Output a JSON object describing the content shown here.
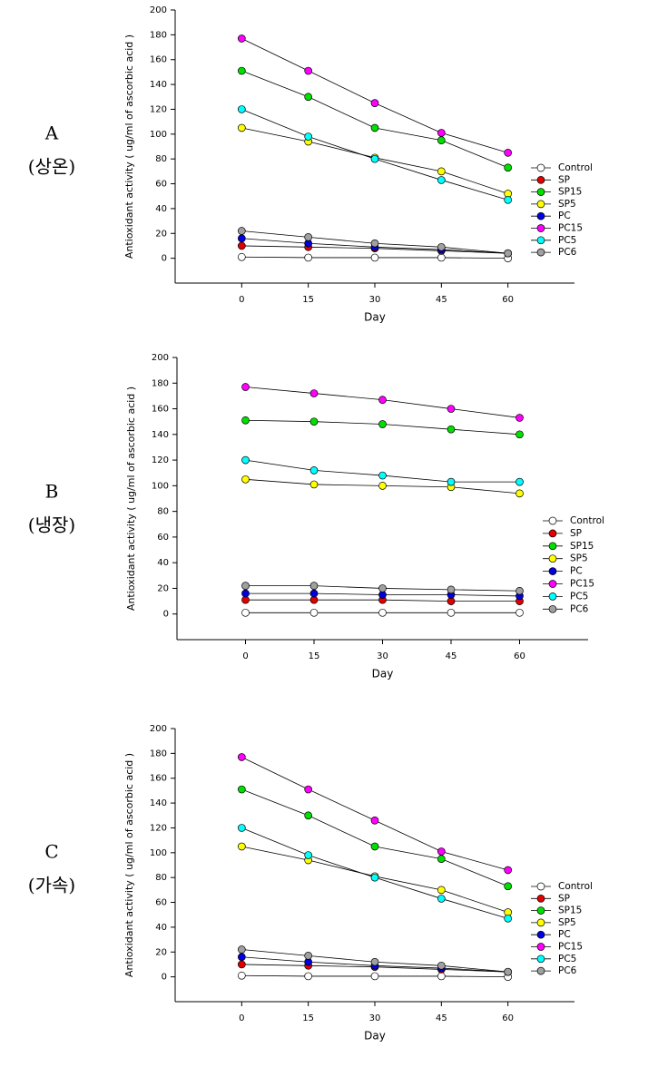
{
  "chart_data": [
    {
      "type": "line",
      "panel": "A",
      "condition": "(상온)",
      "xlabel": "Day",
      "ylabel": "Antioxidant activity ( ug/ml of ascorbic acid )",
      "x": [
        0,
        15,
        30,
        45,
        60
      ],
      "xlim": [
        -15,
        75
      ],
      "xticks": [
        0,
        15,
        30,
        45,
        60
      ],
      "ylim": [
        -20,
        200
      ],
      "yticks": [
        0,
        20,
        40,
        60,
        80,
        100,
        120,
        140,
        160,
        180,
        200
      ],
      "series": [
        {
          "name": "Control",
          "color": "#ffffff",
          "values": [
            1,
            0.5,
            0.5,
            0.5,
            0
          ]
        },
        {
          "name": "SP",
          "color": "#e00000",
          "values": [
            10,
            9,
            8,
            6,
            4
          ]
        },
        {
          "name": "SP15",
          "color": "#00e000",
          "values": [
            151,
            130,
            105,
            95,
            73
          ]
        },
        {
          "name": "SP5",
          "color": "#ffff00",
          "values": [
            105,
            94,
            81,
            70,
            52
          ]
        },
        {
          "name": "PC",
          "color": "#0000e0",
          "values": [
            16,
            12,
            9,
            7,
            4
          ]
        },
        {
          "name": "PC15",
          "color": "#ff00ff",
          "values": [
            177,
            151,
            125,
            101,
            85
          ]
        },
        {
          "name": "PC5",
          "color": "#00ffff",
          "values": [
            120,
            98,
            80,
            63,
            47
          ]
        },
        {
          "name": "PC6",
          "color": "#a0a0a0",
          "values": [
            22,
            17,
            12,
            9,
            4
          ]
        }
      ]
    },
    {
      "type": "line",
      "panel": "B",
      "condition": "(냉장)",
      "xlabel": "Day",
      "ylabel": "Antioxidant activity ( ug/ml of ascorbic acid )",
      "x": [
        0,
        15,
        30,
        45,
        60
      ],
      "xlim": [
        -15,
        75
      ],
      "xticks": [
        0,
        15,
        30,
        45,
        60
      ],
      "ylim": [
        -20,
        200
      ],
      "yticks": [
        0,
        20,
        40,
        60,
        80,
        100,
        120,
        140,
        160,
        180,
        200
      ],
      "series": [
        {
          "name": "Control",
          "color": "#ffffff",
          "values": [
            1,
            1,
            1,
            1,
            1
          ]
        },
        {
          "name": "SP",
          "color": "#e00000",
          "values": [
            11,
            11,
            11,
            10,
            10
          ]
        },
        {
          "name": "SP15",
          "color": "#00e000",
          "values": [
            151,
            150,
            148,
            144,
            140
          ]
        },
        {
          "name": "SP5",
          "color": "#ffff00",
          "values": [
            105,
            101,
            100,
            99,
            94
          ]
        },
        {
          "name": "PC",
          "color": "#0000e0",
          "values": [
            16,
            16,
            15,
            15,
            14
          ]
        },
        {
          "name": "PC15",
          "color": "#ff00ff",
          "values": [
            177,
            172,
            167,
            160,
            153
          ]
        },
        {
          "name": "PC5",
          "color": "#00ffff",
          "values": [
            120,
            112,
            108,
            103,
            103
          ]
        },
        {
          "name": "PC6",
          "color": "#a0a0a0",
          "values": [
            22,
            22,
            20,
            19,
            18
          ]
        }
      ]
    },
    {
      "type": "line",
      "panel": "C",
      "condition": "(가속)",
      "xlabel": "Day",
      "ylabel": "Antioxidant activity ( ug/ml of ascorbic acid )",
      "x": [
        0,
        15,
        30,
        45,
        60
      ],
      "xlim": [
        -15,
        75
      ],
      "xticks": [
        0,
        15,
        30,
        45,
        60
      ],
      "ylim": [
        -20,
        200
      ],
      "yticks": [
        0,
        20,
        40,
        60,
        80,
        100,
        120,
        140,
        160,
        180,
        200
      ],
      "series": [
        {
          "name": "Control",
          "color": "#ffffff",
          "values": [
            1,
            0.5,
            0.5,
            0.5,
            0
          ]
        },
        {
          "name": "SP",
          "color": "#e00000",
          "values": [
            10,
            9,
            8,
            6,
            4
          ]
        },
        {
          "name": "SP15",
          "color": "#00e000",
          "values": [
            151,
            130,
            105,
            95,
            73
          ]
        },
        {
          "name": "SP5",
          "color": "#ffff00",
          "values": [
            105,
            94,
            81,
            70,
            52
          ]
        },
        {
          "name": "PC",
          "color": "#0000e0",
          "values": [
            16,
            12,
            9,
            7,
            4
          ]
        },
        {
          "name": "PC15",
          "color": "#ff00ff",
          "values": [
            177,
            151,
            126,
            101,
            86
          ]
        },
        {
          "name": "PC5",
          "color": "#00ffff",
          "values": [
            120,
            98,
            80,
            63,
            47
          ]
        },
        {
          "name": "PC6",
          "color": "#a0a0a0",
          "values": [
            22,
            17,
            12,
            9,
            4
          ]
        }
      ]
    }
  ]
}
